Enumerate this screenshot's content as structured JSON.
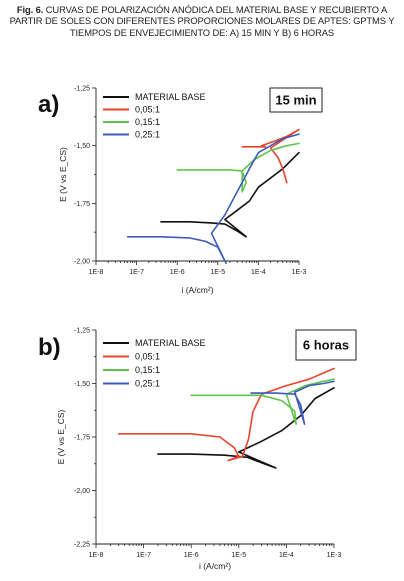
{
  "caption": {
    "fig_label": "Fig. 6.",
    "text": "CURVAS DE POLARIZACIÓN ANÓDICA DEL MATERIAL BASE Y RECUBIERTO A PARTIR DE SOLES CON DIFERENTES PROPORCIONES MOLARES DE APTES: GPTMS Y TIEMPOS DE ENVEJECIMIENTO DE: A) 15 MIN Y B) 6 HORAS"
  },
  "chart_data": [
    {
      "type": "line",
      "panel_label": "a)",
      "time_label": "15 min",
      "xlabel": "i (A/cm²)",
      "ylabel": "E (V vs E_CS)",
      "xscale": "log",
      "xlim": [
        1e-08,
        0.001
      ],
      "ylim": [
        -2.0,
        -1.25
      ],
      "x_ticks": [
        "1E-8",
        "1E-7",
        "1E-6",
        "1E-5",
        "1E-4",
        "1E-3"
      ],
      "y_ticks": [
        "-1,25",
        "-1,50",
        "-1,75",
        "-2,00"
      ],
      "legend_position": "top-left",
      "series": [
        {
          "name": "MATERIAL BASE",
          "color": "#111111",
          "points": [
            [
              4e-07,
              -1.83
            ],
            [
              2e-06,
              -1.83
            ],
            [
              7e-06,
              -1.835
            ],
            [
              1.5e-05,
              -1.84
            ],
            [
              3e-05,
              -1.87
            ],
            [
              5e-05,
              -1.895
            ],
            [
              1.5e-05,
              -1.82
            ],
            [
              3e-05,
              -1.78
            ],
            [
              6e-05,
              -1.74
            ],
            [
              0.0001,
              -1.68
            ],
            [
              0.0002,
              -1.64
            ],
            [
              0.0004,
              -1.6
            ],
            [
              0.001,
              -1.53
            ]
          ]
        },
        {
          "name": "0,05:1",
          "color": "#e8442c",
          "points": [
            [
              4e-05,
              -1.505
            ],
            [
              8e-05,
              -1.505
            ],
            [
              0.00015,
              -1.505
            ],
            [
              0.00012,
              -1.5
            ],
            [
              0.00025,
              -1.48
            ],
            [
              0.0005,
              -1.46
            ],
            [
              0.001,
              -1.43
            ],
            [
              0.0002,
              -1.51
            ],
            [
              0.0003,
              -1.55
            ],
            [
              0.0004,
              -1.6
            ],
            [
              0.0005,
              -1.66
            ]
          ]
        },
        {
          "name": "0,15:1",
          "color": "#5ec34c",
          "points": [
            [
              1e-06,
              -1.605
            ],
            [
              5e-06,
              -1.605
            ],
            [
              2e-05,
              -1.605
            ],
            [
              4e-05,
              -1.61
            ],
            [
              5e-05,
              -1.66
            ],
            [
              4e-05,
              -1.7
            ],
            [
              4e-05,
              -1.61
            ],
            [
              8e-05,
              -1.56
            ],
            [
              0.0002,
              -1.52
            ],
            [
              0.0005,
              -1.5
            ],
            [
              0.001,
              -1.49
            ]
          ]
        },
        {
          "name": "0,25:1",
          "color": "#3b5bbd",
          "points": [
            [
              6e-08,
              -1.895
            ],
            [
              4e-07,
              -1.895
            ],
            [
              2e-06,
              -1.9
            ],
            [
              5e-06,
              -1.915
            ],
            [
              1e-05,
              -1.94
            ],
            [
              1.6e-05,
              -2.01
            ],
            [
              7e-06,
              -1.88
            ],
            [
              1.5e-05,
              -1.8
            ],
            [
              3e-05,
              -1.7
            ],
            [
              6e-05,
              -1.6
            ],
            [
              0.0001,
              -1.53
            ],
            [
              0.0002,
              -1.5
            ],
            [
              0.0004,
              -1.47
            ],
            [
              0.001,
              -1.45
            ]
          ]
        }
      ]
    },
    {
      "type": "line",
      "panel_label": "b)",
      "time_label": "6 horas",
      "xlabel": "i (A/cm²)",
      "ylabel": "E (V vs E_CS)",
      "xscale": "log",
      "xlim": [
        1e-08,
        0.001
      ],
      "ylim": [
        -2.25,
        -1.25
      ],
      "x_ticks": [
        "1E-8",
        "1E-7",
        "1E-6",
        "1E-5",
        "1E-4",
        "1E-3"
      ],
      "y_ticks": [
        "-1,25",
        "-1,50",
        "-1,75",
        "-2,00",
        "-2,25"
      ],
      "legend_position": "top-left",
      "series": [
        {
          "name": "MATERIAL BASE",
          "color": "#111111",
          "points": [
            [
              2e-07,
              -1.83
            ],
            [
              1e-06,
              -1.83
            ],
            [
              5e-06,
              -1.835
            ],
            [
              1.5e-05,
              -1.845
            ],
            [
              3e-05,
              -1.87
            ],
            [
              6e-05,
              -1.895
            ],
            [
              1e-05,
              -1.82
            ],
            [
              3e-05,
              -1.77
            ],
            [
              8e-05,
              -1.72
            ],
            [
              0.0002,
              -1.65
            ],
            [
              0.0004,
              -1.57
            ],
            [
              0.001,
              -1.52
            ]
          ]
        },
        {
          "name": "0,05:1",
          "color": "#e8442c",
          "points": [
            [
              3e-08,
              -1.735
            ],
            [
              2e-07,
              -1.735
            ],
            [
              1e-06,
              -1.735
            ],
            [
              4e-06,
              -1.75
            ],
            [
              8e-06,
              -1.8
            ],
            [
              1e-05,
              -1.84
            ],
            [
              6e-06,
              -1.86
            ],
            [
              1.2e-05,
              -1.84
            ],
            [
              1.6e-05,
              -1.76
            ],
            [
              2e-05,
              -1.63
            ],
            [
              3e-05,
              -1.55
            ],
            [
              0.0001,
              -1.51
            ],
            [
              0.0003,
              -1.48
            ],
            [
              0.001,
              -1.43
            ]
          ]
        },
        {
          "name": "0,15:1",
          "color": "#5ec34c",
          "points": [
            [
              1e-06,
              -1.555
            ],
            [
              6e-06,
              -1.555
            ],
            [
              3e-05,
              -1.555
            ],
            [
              8e-05,
              -1.58
            ],
            [
              0.00015,
              -1.63
            ],
            [
              0.00016,
              -1.69
            ],
            [
              0.0001,
              -1.55
            ],
            [
              0.00025,
              -1.51
            ],
            [
              0.0006,
              -1.49
            ],
            [
              0.001,
              -1.48
            ]
          ]
        },
        {
          "name": "0,25:1",
          "color": "#3b5bbd",
          "points": [
            [
              1.8e-05,
              -1.545
            ],
            [
              6e-05,
              -1.545
            ],
            [
              0.00015,
              -1.55
            ],
            [
              0.0002,
              -1.6
            ],
            [
              0.00024,
              -1.69
            ],
            [
              0.00015,
              -1.54
            ],
            [
              0.0003,
              -1.51
            ],
            [
              0.0006,
              -1.5
            ],
            [
              0.001,
              -1.49
            ]
          ]
        }
      ]
    }
  ]
}
